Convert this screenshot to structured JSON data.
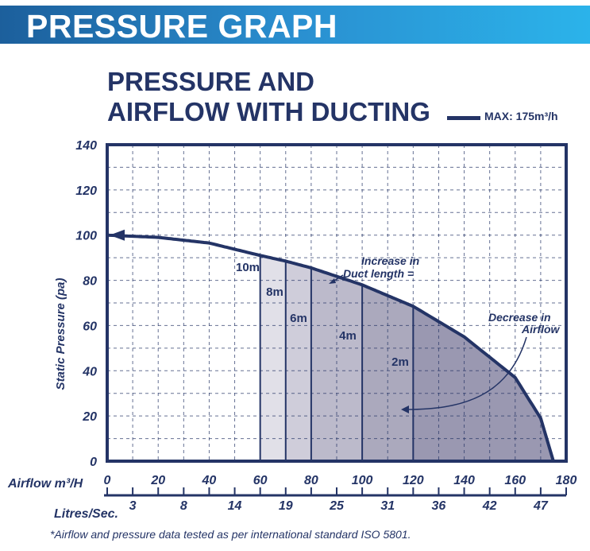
{
  "header": {
    "title": "PRESSURE GRAPH"
  },
  "chart_data": {
    "type": "area",
    "title_lines": [
      "PRESSURE AND",
      "AIRFLOW WITH DUCTING"
    ],
    "legend": {
      "label": "MAX: 175m³/h",
      "placement": "top-right"
    },
    "xlabel": "Airflow m³/H",
    "x2label": "Litres/Sec.",
    "ylabel": "Static Pressure (pa)",
    "xlim": [
      0,
      180
    ],
    "ylim": [
      0,
      140
    ],
    "x_ticks": [
      0,
      20,
      40,
      60,
      80,
      100,
      120,
      140,
      160,
      180
    ],
    "x2_ticks": [
      "3",
      "8",
      "14",
      "19",
      "25",
      "31",
      "36",
      "42",
      "47"
    ],
    "y_ticks": [
      0,
      20,
      40,
      60,
      80,
      100,
      120,
      140
    ],
    "grid": true,
    "series": [
      {
        "name": "MAX: 175m³/h",
        "x": [
          0,
          20,
          40,
          60,
          70,
          80,
          100,
          120,
          140,
          160,
          170,
          175
        ],
        "y": [
          100,
          99,
          96.5,
          91,
          88.5,
          85.5,
          78,
          68.5,
          55,
          37,
          19,
          0
        ]
      }
    ],
    "duct_regions": [
      {
        "label": "10m",
        "from": 60,
        "to": 70,
        "color": "#e1e0e8"
      },
      {
        "label": "8m",
        "from": 70,
        "to": 80,
        "color": "#cfcdda"
      },
      {
        "label": "6m",
        "from": 80,
        "to": 100,
        "color": "#bcbacb"
      },
      {
        "label": "4m",
        "from": 100,
        "to": 120,
        "color": "#aba9bd"
      },
      {
        "label": "2m",
        "from": 120,
        "to": 175,
        "color": "#9a98b1"
      }
    ],
    "annotations": [
      "Increase in",
      "Duct length =",
      "Decrease in",
      "Airflow"
    ],
    "line_color": "#243466"
  },
  "footnote": "*Airflow and pressure data tested as per international standard ISO 5801."
}
